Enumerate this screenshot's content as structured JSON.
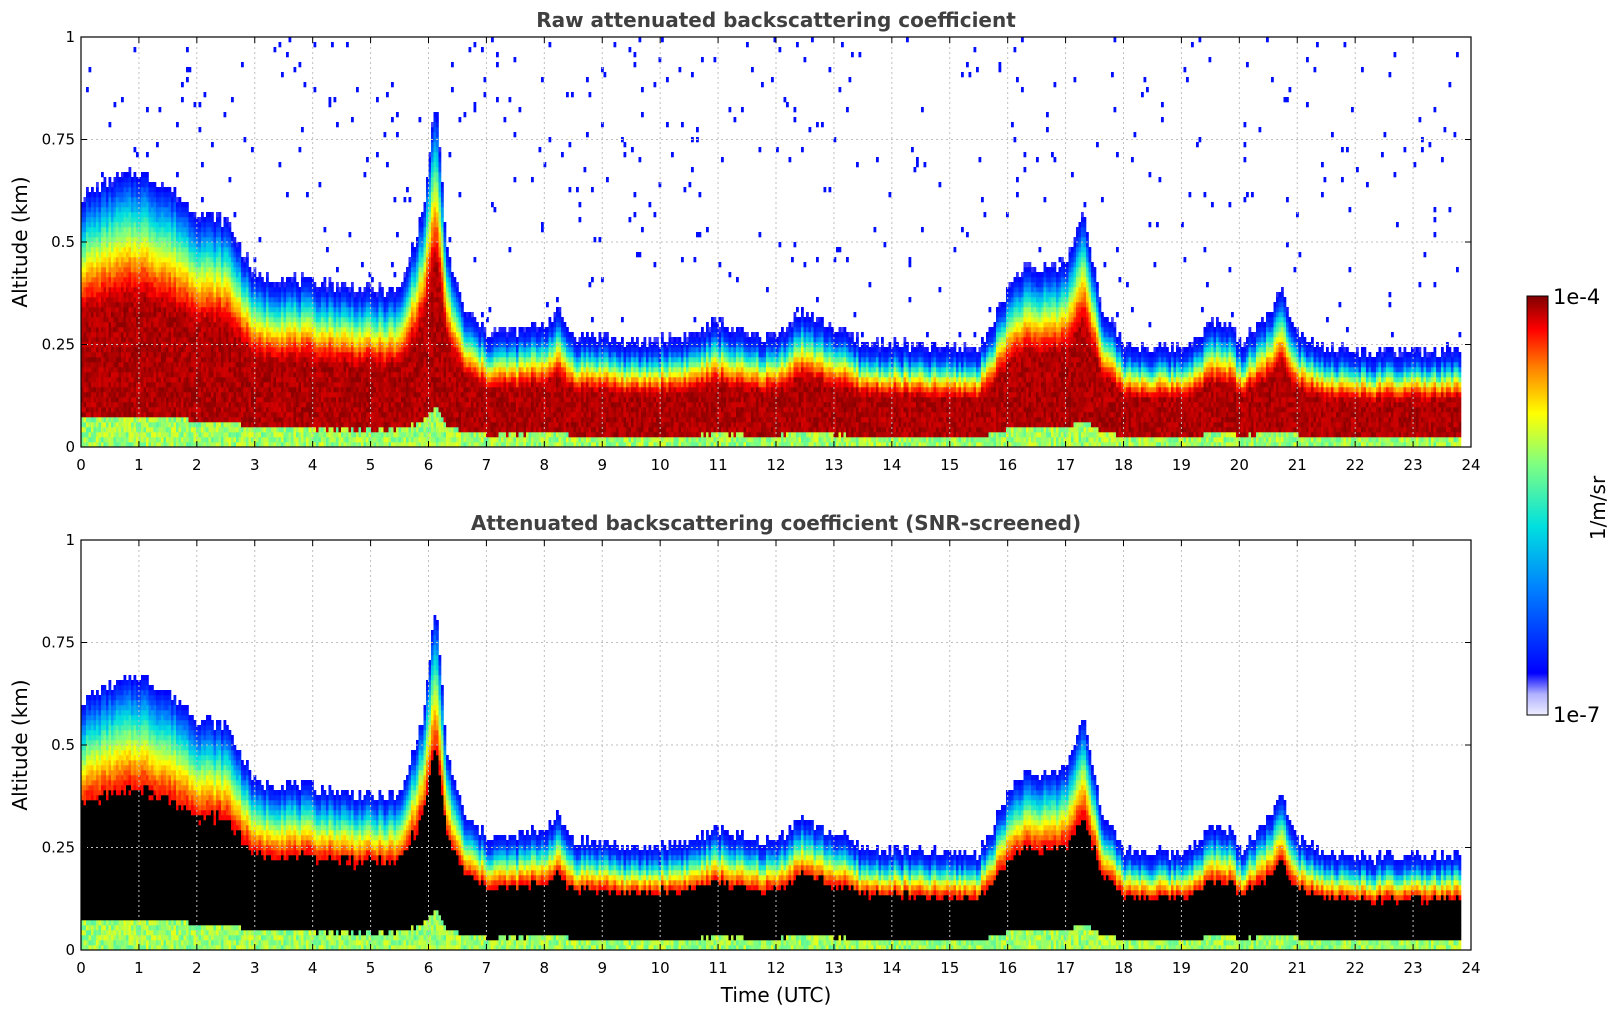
{
  "chart_data": [
    {
      "type": "heatmap",
      "title": "Raw attenuated backscattering coefficient",
      "xlabel": "",
      "ylabel": "Altitude (km)",
      "xlim": [
        0,
        24
      ],
      "ylim": [
        0,
        1
      ],
      "xticks": [
        "0",
        "1",
        "2",
        "3",
        "4",
        "5",
        "6",
        "7",
        "8",
        "9",
        "10",
        "11",
        "12",
        "13",
        "14",
        "15",
        "16",
        "17",
        "18",
        "19",
        "20",
        "21",
        "22",
        "23",
        "24"
      ],
      "yticks": [
        "0",
        "0.25",
        "0.5",
        "0.75",
        "1"
      ],
      "grid": true,
      "screened": false,
      "boundary_layer_top_km": {
        "x": [
          0,
          0.5,
          1,
          1.5,
          2,
          2.5,
          3,
          3.5,
          4,
          4.5,
          5,
          5.5,
          5.9,
          6.1,
          6.3,
          6.6,
          7,
          7.5,
          8,
          8.2,
          8.5,
          9,
          9.5,
          10,
          10.5,
          11,
          11.5,
          12,
          12.4,
          12.8,
          13,
          13.5,
          14,
          14.5,
          15,
          15.5,
          16,
          16.2,
          16.5,
          17,
          17.3,
          17.6,
          18,
          18.5,
          19,
          19.5,
          19.8,
          20,
          20.5,
          20.7,
          21,
          21.5,
          22,
          22.5,
          23,
          23.5,
          23.8
        ],
        "y": [
          0.58,
          0.62,
          0.64,
          0.6,
          0.54,
          0.52,
          0.38,
          0.38,
          0.37,
          0.36,
          0.35,
          0.35,
          0.55,
          0.82,
          0.45,
          0.3,
          0.25,
          0.25,
          0.27,
          0.3,
          0.24,
          0.24,
          0.22,
          0.23,
          0.24,
          0.27,
          0.24,
          0.24,
          0.3,
          0.27,
          0.26,
          0.22,
          0.22,
          0.21,
          0.21,
          0.21,
          0.36,
          0.4,
          0.4,
          0.42,
          0.55,
          0.3,
          0.22,
          0.21,
          0.21,
          0.27,
          0.27,
          0.22,
          0.3,
          0.35,
          0.25,
          0.21,
          0.2,
          0.2,
          0.2,
          0.2,
          0.2
        ]
      },
      "colorbar": {
        "label": "1/m/sr",
        "min_label": "1e-7",
        "max_label": "1e-4",
        "scale": "log",
        "colormap": "jet"
      }
    },
    {
      "type": "heatmap",
      "title": "Attenuated backscattering coefficient (SNR-screened)",
      "xlabel": "Time (UTC)",
      "ylabel": "Altitude (km)",
      "xlim": [
        0,
        24
      ],
      "ylim": [
        0,
        1
      ],
      "xticks": [
        "0",
        "1",
        "2",
        "3",
        "4",
        "5",
        "6",
        "7",
        "8",
        "9",
        "10",
        "11",
        "12",
        "13",
        "14",
        "15",
        "16",
        "17",
        "18",
        "19",
        "20",
        "21",
        "22",
        "23",
        "24"
      ],
      "yticks": [
        "0",
        "0.25",
        "0.5",
        "0.75",
        "1"
      ],
      "grid": true,
      "screened": true,
      "boundary_layer_top_km": {
        "x": [
          0,
          0.5,
          1,
          1.5,
          2,
          2.5,
          3,
          3.5,
          4,
          4.5,
          5,
          5.5,
          5.9,
          6.1,
          6.3,
          6.6,
          7,
          7.5,
          8,
          8.2,
          8.5,
          9,
          9.5,
          10,
          10.5,
          11,
          11.5,
          12,
          12.4,
          12.8,
          13,
          13.5,
          14,
          14.5,
          15,
          15.5,
          16,
          16.2,
          16.5,
          17,
          17.3,
          17.6,
          18,
          18.5,
          19,
          19.5,
          19.8,
          20,
          20.5,
          20.7,
          21,
          21.5,
          22,
          22.5,
          23,
          23.5,
          23.8
        ],
        "y": [
          0.58,
          0.62,
          0.64,
          0.6,
          0.54,
          0.52,
          0.38,
          0.38,
          0.37,
          0.36,
          0.35,
          0.35,
          0.55,
          0.82,
          0.45,
          0.3,
          0.25,
          0.25,
          0.27,
          0.3,
          0.24,
          0.24,
          0.22,
          0.23,
          0.24,
          0.27,
          0.24,
          0.24,
          0.3,
          0.27,
          0.26,
          0.22,
          0.22,
          0.21,
          0.21,
          0.21,
          0.36,
          0.4,
          0.4,
          0.42,
          0.55,
          0.3,
          0.22,
          0.21,
          0.21,
          0.27,
          0.27,
          0.22,
          0.3,
          0.35,
          0.25,
          0.21,
          0.2,
          0.2,
          0.2,
          0.2,
          0.2
        ]
      },
      "colorbar": {
        "label": "1/m/sr",
        "min_label": "1e-7",
        "max_label": "1e-4",
        "scale": "log",
        "colormap": "jet"
      }
    }
  ],
  "colorbar": {
    "label": "1/m/sr",
    "max_label": "1e-4",
    "min_label": "1e-7"
  },
  "colors": {
    "title_text": "#404040",
    "grid": "#bfbfbf",
    "saturated_screened": "#000000",
    "saturated_raw": "#800000"
  }
}
